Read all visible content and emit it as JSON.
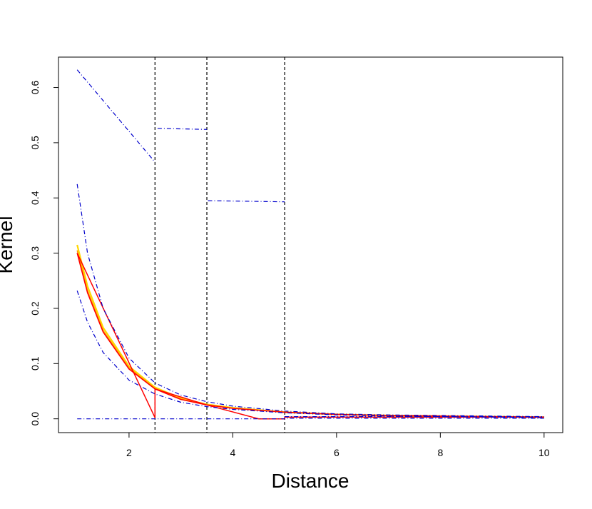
{
  "chart_data": {
    "type": "line",
    "title": "",
    "xlabel": "Distance",
    "ylabel": "Kernel",
    "xlim": [
      0.64,
      10.36
    ],
    "ylim": [
      -0.025,
      0.655
    ],
    "xticks": [
      2,
      4,
      6,
      8,
      10
    ],
    "yticks": [
      0.0,
      0.1,
      0.2,
      0.3,
      0.4,
      0.5,
      0.6
    ],
    "xtick_labels": [
      "2",
      "4",
      "6",
      "8",
      "10"
    ],
    "ytick_labels": [
      "0.0",
      "0.1",
      "0.2",
      "0.3",
      "0.4",
      "0.5",
      "0.6"
    ],
    "grid": false,
    "legend": "none",
    "vlines": [
      2.5,
      3.5,
      5.0
    ],
    "colors": {
      "yellow": "#ffd700",
      "orange": "#ff9900",
      "red": "#ff0000",
      "blue": "#0000cc",
      "vline": "#000000",
      "frame": "#000000"
    },
    "series": [
      {
        "style": "solid-yellow",
        "x": [
          1,
          1.2,
          1.5,
          2.0,
          2.5,
          3.0,
          3.5,
          4.0,
          5.0,
          6.0,
          7.0,
          8.0,
          9.0,
          10.0
        ],
        "y": [
          0.315,
          0.24,
          0.165,
          0.095,
          0.057,
          0.037,
          0.026,
          0.02,
          0.012,
          0.008,
          0.006,
          0.005,
          0.004,
          0.003
        ]
      },
      {
        "style": "solid-orange",
        "x": [
          1,
          1.2,
          1.5,
          2.0,
          2.5,
          3.0,
          3.5,
          4.0,
          5.0,
          6.0,
          7.0,
          8.0,
          9.0,
          10.0
        ],
        "y": [
          0.305,
          0.232,
          0.16,
          0.092,
          0.055,
          0.036,
          0.025,
          0.019,
          0.012,
          0.008,
          0.006,
          0.005,
          0.004,
          0.003
        ]
      },
      {
        "style": "solid-red",
        "x": [
          1,
          1.2,
          1.5,
          2.0,
          2.5,
          3.0,
          3.5,
          4.0,
          5.0,
          6.0,
          7.0,
          8.0,
          9.0,
          10.0
        ],
        "y": [
          0.3,
          0.228,
          0.157,
          0.09,
          0.054,
          0.035,
          0.025,
          0.019,
          0.012,
          0.008,
          0.006,
          0.005,
          0.004,
          0.003
        ]
      },
      {
        "style": "solid-red-piecewise",
        "x": [
          1,
          2.5,
          2.5,
          3.5,
          4.5,
          5.0,
          5.0,
          10.0
        ],
        "y": [
          0.3,
          0.002,
          0.054,
          0.025,
          0.0,
          0.0,
          0.003,
          0.003
        ]
      },
      {
        "style": "dashdot-blue-upper",
        "x": [
          1,
          1.2,
          1.5,
          2.0,
          2.5,
          3.0,
          3.5,
          4.0,
          5.0,
          6.0,
          7.0,
          8.0,
          9.0,
          10.0
        ],
        "y": [
          0.425,
          0.3,
          0.2,
          0.11,
          0.065,
          0.043,
          0.031,
          0.023,
          0.014,
          0.009,
          0.007,
          0.006,
          0.005,
          0.004
        ]
      },
      {
        "style": "dashdot-blue-lower",
        "x": [
          1,
          1.2,
          1.5,
          2.0,
          2.5,
          3.0,
          3.5,
          4.0,
          5.0,
          6.0,
          7.0,
          8.0,
          9.0,
          10.0
        ],
        "y": [
          0.232,
          0.175,
          0.12,
          0.07,
          0.045,
          0.03,
          0.022,
          0.017,
          0.011,
          0.007,
          0.005,
          0.004,
          0.003,
          0.002
        ]
      },
      {
        "style": "dashdot-blue-interval-high",
        "x": [
          1,
          2.5,
          null,
          2.55,
          3.5,
          null,
          3.52,
          5.0,
          null,
          5.0,
          10.0
        ],
        "y": [
          0.632,
          0.465,
          null,
          0.526,
          0.524,
          null,
          0.395,
          0.393,
          null,
          0.004,
          0.004
        ]
      },
      {
        "style": "dashdot-blue-interval-low",
        "x": [
          1,
          5.0,
          5.0,
          10.0
        ],
        "y": [
          0.0,
          0.0,
          0.001,
          0.001
        ]
      }
    ]
  }
}
